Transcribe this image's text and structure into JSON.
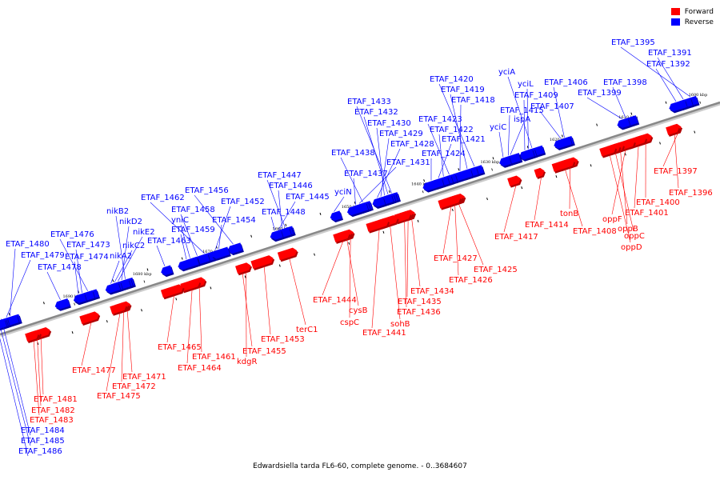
{
  "legend": [
    {
      "label": "Forward",
      "color": "#ff0000"
    },
    {
      "label": "Reverse",
      "color": "#0000ff"
    }
  ],
  "caption": "Edwardsiella tarda FL6-60, complete genome. - 0..3684607",
  "colors": {
    "forward": "#ff0000",
    "forward_dark": "#b00000",
    "reverse": "#0000ff",
    "reverse_dark": "#0000a0",
    "backbone": "#888888"
  },
  "genome_range": {
    "start_kbp": 1600,
    "end_kbp": 1690
  },
  "ticks": [
    "1600 kbp",
    "1610 kbp",
    "1620 kbp",
    "1630 kbp",
    "1640 kbp",
    "1650 kbp",
    "1660 kbp",
    "1670 kbp",
    "1680 kbp",
    "1690 kbp"
  ],
  "reverse_genes": [
    "ETAF_1395",
    "ETAF_1391",
    "ETAF_1392",
    "ETAF_1398",
    "ETAF_1399",
    "ETAF_1406",
    "ETAF_1407",
    "yciA",
    "yciL",
    "ETAF_1409",
    "ispA",
    "ETAF_1415",
    "yciC",
    "ETAF_1420",
    "ETAF_1419",
    "ETAF_1418",
    "ETAF_1423",
    "ETAF_1422",
    "ETAF_1421",
    "ETAF_1424",
    "ETAF_1433",
    "ETAF_1432",
    "ETAF_1430",
    "ETAF_1429",
    "ETAF_1428",
    "ETAF_1438",
    "ETAF_1431",
    "ETAF_1437",
    "yciN",
    "ETAF_1447",
    "ETAF_1446",
    "ETAF_1445",
    "ETAF_1448",
    "ETAF_1456",
    "ETAF_1462",
    "ETAF_1458",
    "ETAF_1452",
    "yniC",
    "ETAF_1454",
    "ETAF_1459",
    "ETAF_1463",
    "nikB2",
    "nikD2",
    "nikE2",
    "nikC2",
    "nikA2",
    "ETAF_1476",
    "ETAF_1473",
    "ETAF_1474",
    "ETAF_1478",
    "ETAF_1480",
    "ETAF_1479",
    "ETAF_1484",
    "ETAF_1485",
    "ETAF_1486"
  ],
  "forward_genes": [
    "ETAF_1397",
    "ETAF_1396",
    "ETAF_1400",
    "ETAF_1401",
    "oppF",
    "oppB",
    "oppC",
    "oppD",
    "tonB",
    "ETAF_1408",
    "ETAF_1414",
    "ETAF_1417",
    "ETAF_1425",
    "ETAF_1426",
    "ETAF_1427",
    "ETAF_1434",
    "ETAF_1435",
    "ETAF_1436",
    "sohB",
    "ETAF_1441",
    "cspC",
    "cysB",
    "ETAF_1444",
    "terC1",
    "ETAF_1453",
    "ETAF_1455",
    "kdgR",
    "ETAF_1461",
    "ETAF_1464",
    "ETAF_1465",
    "ETAF_1471",
    "ETAF_1472",
    "ETAF_1475",
    "ETAF_1477",
    "ETAF_1481",
    "ETAF_1482",
    "ETAF_1483"
  ]
}
